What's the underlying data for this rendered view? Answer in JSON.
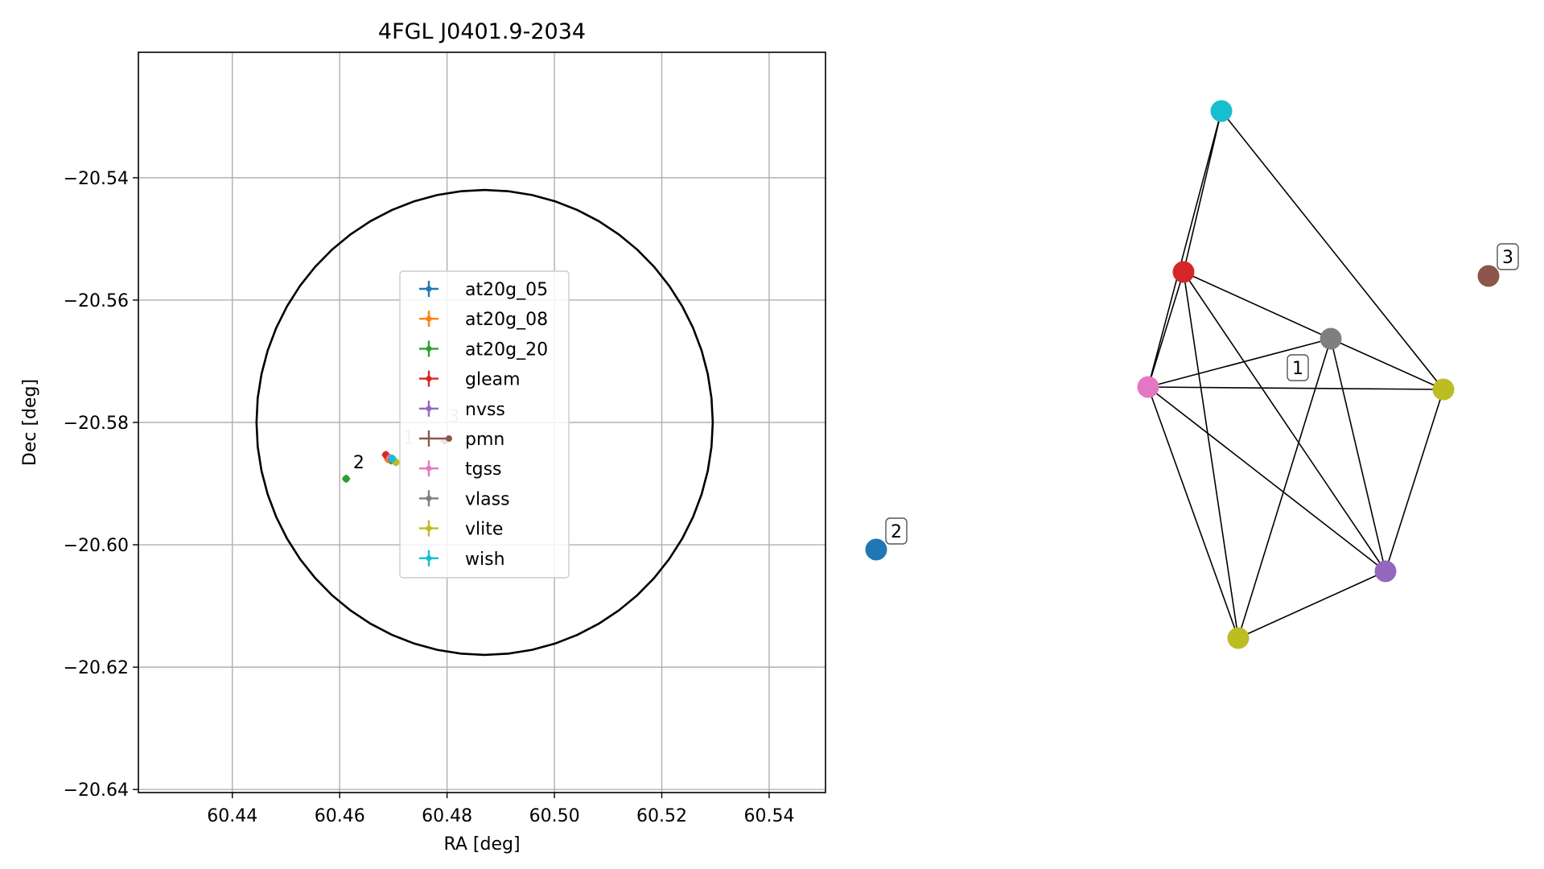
{
  "chart_data": [
    {
      "type": "scatter",
      "title": "4FGL J0401.9-2034",
      "xlabel": "RA [deg]",
      "ylabel": "Dec [deg]",
      "xlim": [
        60.4225,
        60.5505
      ],
      "ylim": [
        -20.6405,
        -20.5195
      ],
      "xticks": [
        "60.44",
        "60.46",
        "60.48",
        "60.50",
        "60.52",
        "60.54"
      ],
      "yticks": [
        "−20.54",
        "−20.56",
        "−20.58",
        "−20.60",
        "−20.62",
        "−20.64"
      ],
      "grid": true,
      "legend_placement": "center",
      "ellipse": {
        "center_ra": 60.487,
        "center_dec": -20.58,
        "radius_ra": 0.0425,
        "radius_dec": 0.038
      },
      "series": [
        {
          "name": "at20g_05",
          "color": "#1f77b4",
          "ra": 60.4696,
          "dec": -20.5862
        },
        {
          "name": "at20g_08",
          "color": "#ff7f0e",
          "ra": 60.469,
          "dec": -20.586
        },
        {
          "name": "at20g_20",
          "color": "#2ca02c",
          "ra": 60.4612,
          "dec": -20.5892
        },
        {
          "name": "gleam",
          "color": "#d62728",
          "ra": 60.4686,
          "dec": -20.5853
        },
        {
          "name": "nvss",
          "color": "#9467bd",
          "ra": 60.47,
          "dec": -20.5862
        },
        {
          "name": "pmn",
          "color": "#8c564b",
          "ra": 60.4795,
          "dec": -20.583
        },
        {
          "name": "tgss",
          "color": "#e377c2",
          "ra": 60.4694,
          "dec": -20.5858
        },
        {
          "name": "vlass",
          "color": "#7f7f7f",
          "ra": 60.4697,
          "dec": -20.5861
        },
        {
          "name": "vlite",
          "color": "#bcbd22",
          "ra": 60.4705,
          "dec": -20.5865
        },
        {
          "name": "wish",
          "color": "#17becf",
          "ra": 60.4698,
          "dec": -20.5859
        }
      ],
      "annotations": [
        {
          "text": "1",
          "ra": 60.4718,
          "dec": -20.5835,
          "color": "#aaaaaa"
        },
        {
          "text": "2",
          "ra": 60.4625,
          "dec": -20.5875,
          "color": "#000000"
        },
        {
          "text": "3",
          "ra": 60.4802,
          "dec": -20.58,
          "color": "#aaaaaa"
        }
      ]
    },
    {
      "type": "network",
      "nodes": [
        {
          "id": "wish",
          "color": "#17becf"
        },
        {
          "id": "gleam",
          "color": "#d62728"
        },
        {
          "id": "vlass",
          "color": "#7f7f7f"
        },
        {
          "id": "tgss",
          "color": "#e377c2"
        },
        {
          "id": "vlite_a",
          "color": "#bcbd22"
        },
        {
          "id": "nvss",
          "color": "#9467bd"
        },
        {
          "id": "vlite_b",
          "color": "#bcbd22"
        },
        {
          "id": "pmn",
          "color": "#8c564b"
        },
        {
          "id": "at20g",
          "color": "#1f77b4"
        }
      ],
      "edges": [
        [
          "wish",
          "gleam"
        ],
        [
          "wish",
          "tgss"
        ],
        [
          "wish",
          "vlite_a"
        ],
        [
          "gleam",
          "vlass"
        ],
        [
          "gleam",
          "tgss"
        ],
        [
          "gleam",
          "nvss"
        ],
        [
          "gleam",
          "vlite_b"
        ],
        [
          "vlass",
          "tgss"
        ],
        [
          "vlass",
          "vlite_a"
        ],
        [
          "vlass",
          "nvss"
        ],
        [
          "vlass",
          "vlite_b"
        ],
        [
          "tgss",
          "vlite_a"
        ],
        [
          "tgss",
          "nvss"
        ],
        [
          "tgss",
          "vlite_b"
        ],
        [
          "vlite_a",
          "nvss"
        ],
        [
          "nvss",
          "vlite_b"
        ]
      ],
      "labels": [
        {
          "text": "1"
        },
        {
          "text": "2"
        },
        {
          "text": "3"
        }
      ]
    }
  ]
}
